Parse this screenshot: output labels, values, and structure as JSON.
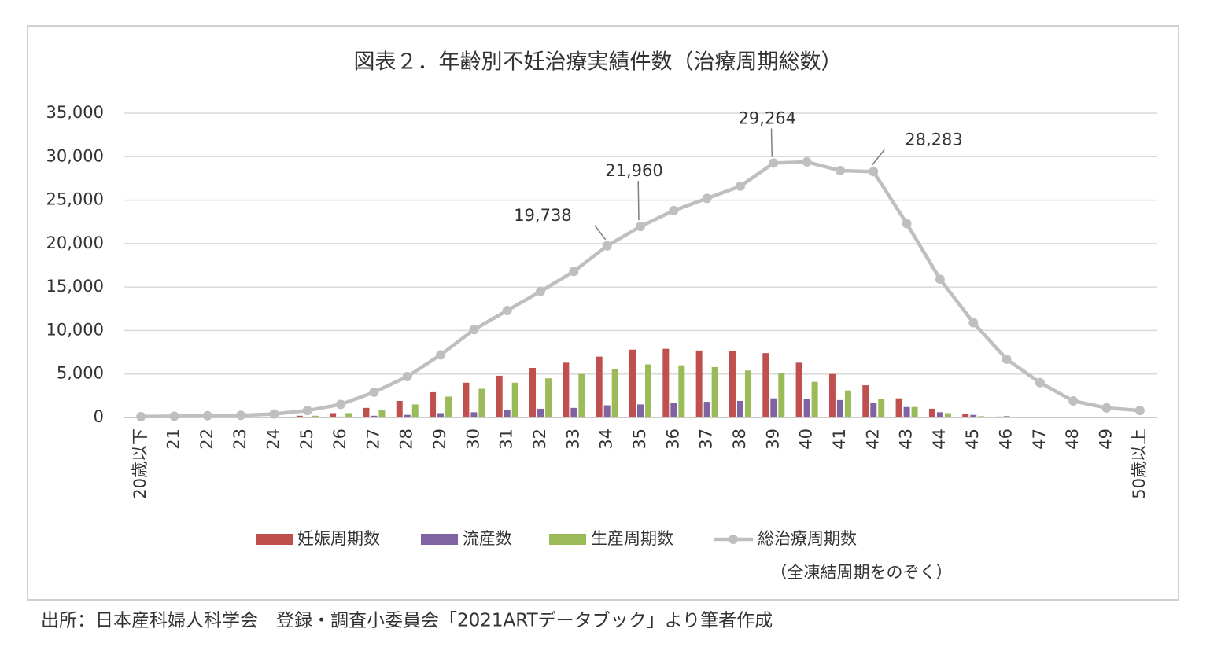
{
  "chart_data": {
    "type": "bar",
    "title": "図表２．年齢別不妊治療実績件数（治療周期総数）",
    "note": "（全凍結周期をのぞく）",
    "source": "出所：日本産科婦人科学会　登録・調査小委員会「2021ARTデータブック」より筆者作成",
    "categories": [
      "20歳以下",
      "21",
      "22",
      "23",
      "24",
      "25",
      "26",
      "27",
      "28",
      "29",
      "30",
      "31",
      "32",
      "33",
      "34",
      "35",
      "36",
      "37",
      "38",
      "39",
      "40",
      "41",
      "42",
      "43",
      "44",
      "45",
      "46",
      "47",
      "48",
      "49",
      "50歳以上"
    ],
    "ylim": [
      0,
      35000
    ],
    "yticks": [
      0,
      {
        "value": 5000,
        "label": "5,000"
      },
      {
        "value": 10000,
        "label": "10,000"
      },
      {
        "value": 15000,
        "label": "15,000"
      },
      {
        "value": 20000,
        "label": "20,000"
      },
      {
        "value": 25000,
        "label": "25,000"
      },
      {
        "value": 30000,
        "label": "30,000"
      },
      {
        "value": 35000,
        "label": "35,000"
      }
    ],
    "grid": true,
    "legend": "bottom",
    "series": [
      {
        "name": "妊娠周期数",
        "type": "bar",
        "color": "#c0504d",
        "values": [
          0,
          0,
          0,
          10,
          50,
          200,
          500,
          1100,
          1900,
          2900,
          4000,
          4800,
          5700,
          6300,
          7000,
          7800,
          7900,
          7700,
          7600,
          7400,
          6300,
          5000,
          3700,
          2200,
          1000,
          400,
          100,
          30,
          10,
          5,
          5
        ]
      },
      {
        "name": "流産数",
        "type": "bar",
        "color": "#8064a2",
        "values": [
          0,
          0,
          0,
          5,
          10,
          30,
          100,
          200,
          300,
          500,
          600,
          900,
          1000,
          1100,
          1400,
          1500,
          1700,
          1800,
          1900,
          2200,
          2100,
          2000,
          1700,
          1200,
          600,
          300,
          150,
          50,
          30,
          20,
          20
        ]
      },
      {
        "name": "生産周期数",
        "type": "bar",
        "color": "#9bbb59",
        "values": [
          0,
          0,
          0,
          10,
          50,
          200,
          500,
          900,
          1500,
          2400,
          3300,
          4000,
          4500,
          5000,
          5600,
          6100,
          6000,
          5800,
          5400,
          5100,
          4100,
          3100,
          2100,
          1200,
          500,
          150,
          50,
          20,
          10,
          5,
          5
        ]
      },
      {
        "name": "総治療周期数",
        "type": "line",
        "color": "#bfbfbf",
        "values": [
          100,
          150,
          200,
          250,
          400,
          800,
          1500,
          2900,
          4700,
          7200,
          10100,
          12300,
          14500,
          16800,
          19738,
          21960,
          23800,
          25200,
          26600,
          29264,
          29400,
          28400,
          28283,
          22300,
          15900,
          10900,
          6700,
          4000,
          1900,
          1100,
          800
        ],
        "value_labels": [
          null,
          null,
          null,
          null,
          null,
          null,
          null,
          null,
          null,
          null,
          null,
          null,
          null,
          null,
          "19,738",
          "21,960",
          null,
          null,
          null,
          "29,264",
          null,
          null,
          "28,283",
          null,
          null,
          null,
          null,
          null,
          null,
          null,
          null
        ]
      }
    ]
  }
}
